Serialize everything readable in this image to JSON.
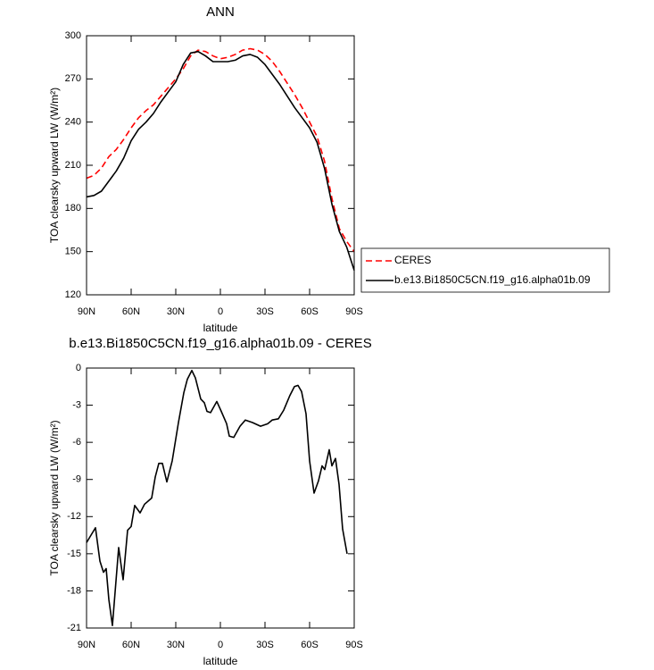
{
  "chart_data": [
    {
      "type": "line",
      "title": "ANN",
      "xlabel": "latitude",
      "ylabel": "TOA clearsky upward LW (W/m²)",
      "x": [
        90,
        85,
        80,
        75,
        70,
        65,
        60,
        55,
        50,
        45,
        40,
        35,
        30,
        25,
        20,
        15,
        10,
        5,
        0,
        -5,
        -10,
        -15,
        -20,
        -25,
        -30,
        -35,
        -40,
        -45,
        -50,
        -55,
        -60,
        -65,
        -70,
        -75,
        -80,
        -85,
        -90
      ],
      "series": [
        {
          "name": "CERES",
          "color": "#ff0000",
          "line_style": "dashed",
          "values": [
            201,
            203,
            208,
            216,
            221,
            228,
            236,
            243,
            248,
            252,
            258,
            264,
            270,
            277,
            286,
            290,
            289,
            286,
            284,
            285,
            287,
            290,
            291,
            290,
            287,
            282,
            275,
            267,
            259,
            250,
            240,
            230,
            213,
            187,
            166,
            157,
            150
          ]
        },
        {
          "name": "b.e13.Bi1850C5CN.f19_g16.alpha01b.09",
          "color": "#000000",
          "line_style": "solid",
          "values": [
            188,
            189,
            192,
            199,
            206,
            215,
            227,
            235,
            240,
            246,
            254,
            261,
            268,
            280,
            288,
            289,
            286,
            282,
            282,
            282,
            283,
            286,
            287,
            285,
            280,
            273,
            266,
            258,
            250,
            243,
            236,
            226,
            208,
            183,
            164,
            153,
            137
          ]
        }
      ],
      "xlim": [
        90,
        -90
      ],
      "xticks": [
        {
          "value": 90,
          "label": "90N"
        },
        {
          "value": 60,
          "label": "60N"
        },
        {
          "value": 30,
          "label": "30N"
        },
        0,
        {
          "value": -30,
          "label": "30S"
        },
        {
          "value": -60,
          "label": "60S"
        },
        {
          "value": -90,
          "label": "90S"
        }
      ],
      "ylim": [
        120,
        300
      ],
      "yticks": [
        120,
        150,
        180,
        210,
        240,
        270,
        300
      ],
      "legend": "outside-right-bottom"
    },
    {
      "type": "line",
      "title": "b.e13.Bi1850C5CN.f19_g16.alpha01b.09 - CERES",
      "xlabel": "latitude",
      "ylabel": "TOA clearsky upward LW (W/m²)",
      "x": [
        90,
        84,
        81,
        78.6,
        76.8,
        75,
        72.6,
        68.4,
        65.4,
        62.4,
        60,
        57.6,
        54,
        51,
        46.2,
        43.8,
        41.4,
        39,
        36,
        32.4,
        28.2,
        24.6,
        22.2,
        19.2,
        16.8,
        13.2,
        10.8,
        9,
        6.6,
        2.4,
        -0.6,
        -4.2,
        -6,
        -9,
        -13.2,
        -16.8,
        -21.6,
        -27,
        -31.8,
        -34.8,
        -39,
        -42.6,
        -46.8,
        -49.8,
        -52.2,
        -54.6,
        -57.6,
        -60,
        -63,
        -66,
        -68.4,
        -70.2,
        -73.2,
        -75,
        -77.4,
        -79.8,
        -82.2,
        -85.2
      ],
      "series": [
        {
          "color": "#000000",
          "line_style": "solid",
          "values": [
            -14.1,
            -12.9,
            -15.6,
            -16.5,
            -16.2,
            -18.7,
            -20.8,
            -14.5,
            -17.1,
            -13.1,
            -12.8,
            -11.1,
            -11.7,
            -11.0,
            -10.5,
            -8.8,
            -7.7,
            -7.7,
            -9.2,
            -7.5,
            -4.4,
            -2.0,
            -0.9,
            -0.2,
            -0.8,
            -2.5,
            -2.8,
            -3.5,
            -3.6,
            -2.7,
            -3.5,
            -4.5,
            -5.5,
            -5.6,
            -4.7,
            -4.2,
            -4.4,
            -4.7,
            -4.5,
            -4.2,
            -4.1,
            -3.4,
            -2.2,
            -1.5,
            -1.4,
            -1.9,
            -3.7,
            -7.5,
            -10.1,
            -9.1,
            -7.9,
            -8.2,
            -6.6,
            -7.9,
            -7.3,
            -9.4,
            -13.0,
            -15.0
          ]
        }
      ],
      "xlim": [
        90,
        -90
      ],
      "xticks": [
        {
          "value": 90,
          "label": "90N"
        },
        {
          "value": 60,
          "label": "60N"
        },
        {
          "value": 30,
          "label": "30N"
        },
        0,
        {
          "value": -30,
          "label": "30S"
        },
        {
          "value": -60,
          "label": "60S"
        },
        {
          "value": -90,
          "label": "90S"
        }
      ],
      "ylim": [
        -21,
        0
      ],
      "yticks": [
        -21,
        -18,
        -15,
        -12,
        -9,
        -6,
        -3,
        0
      ]
    }
  ]
}
